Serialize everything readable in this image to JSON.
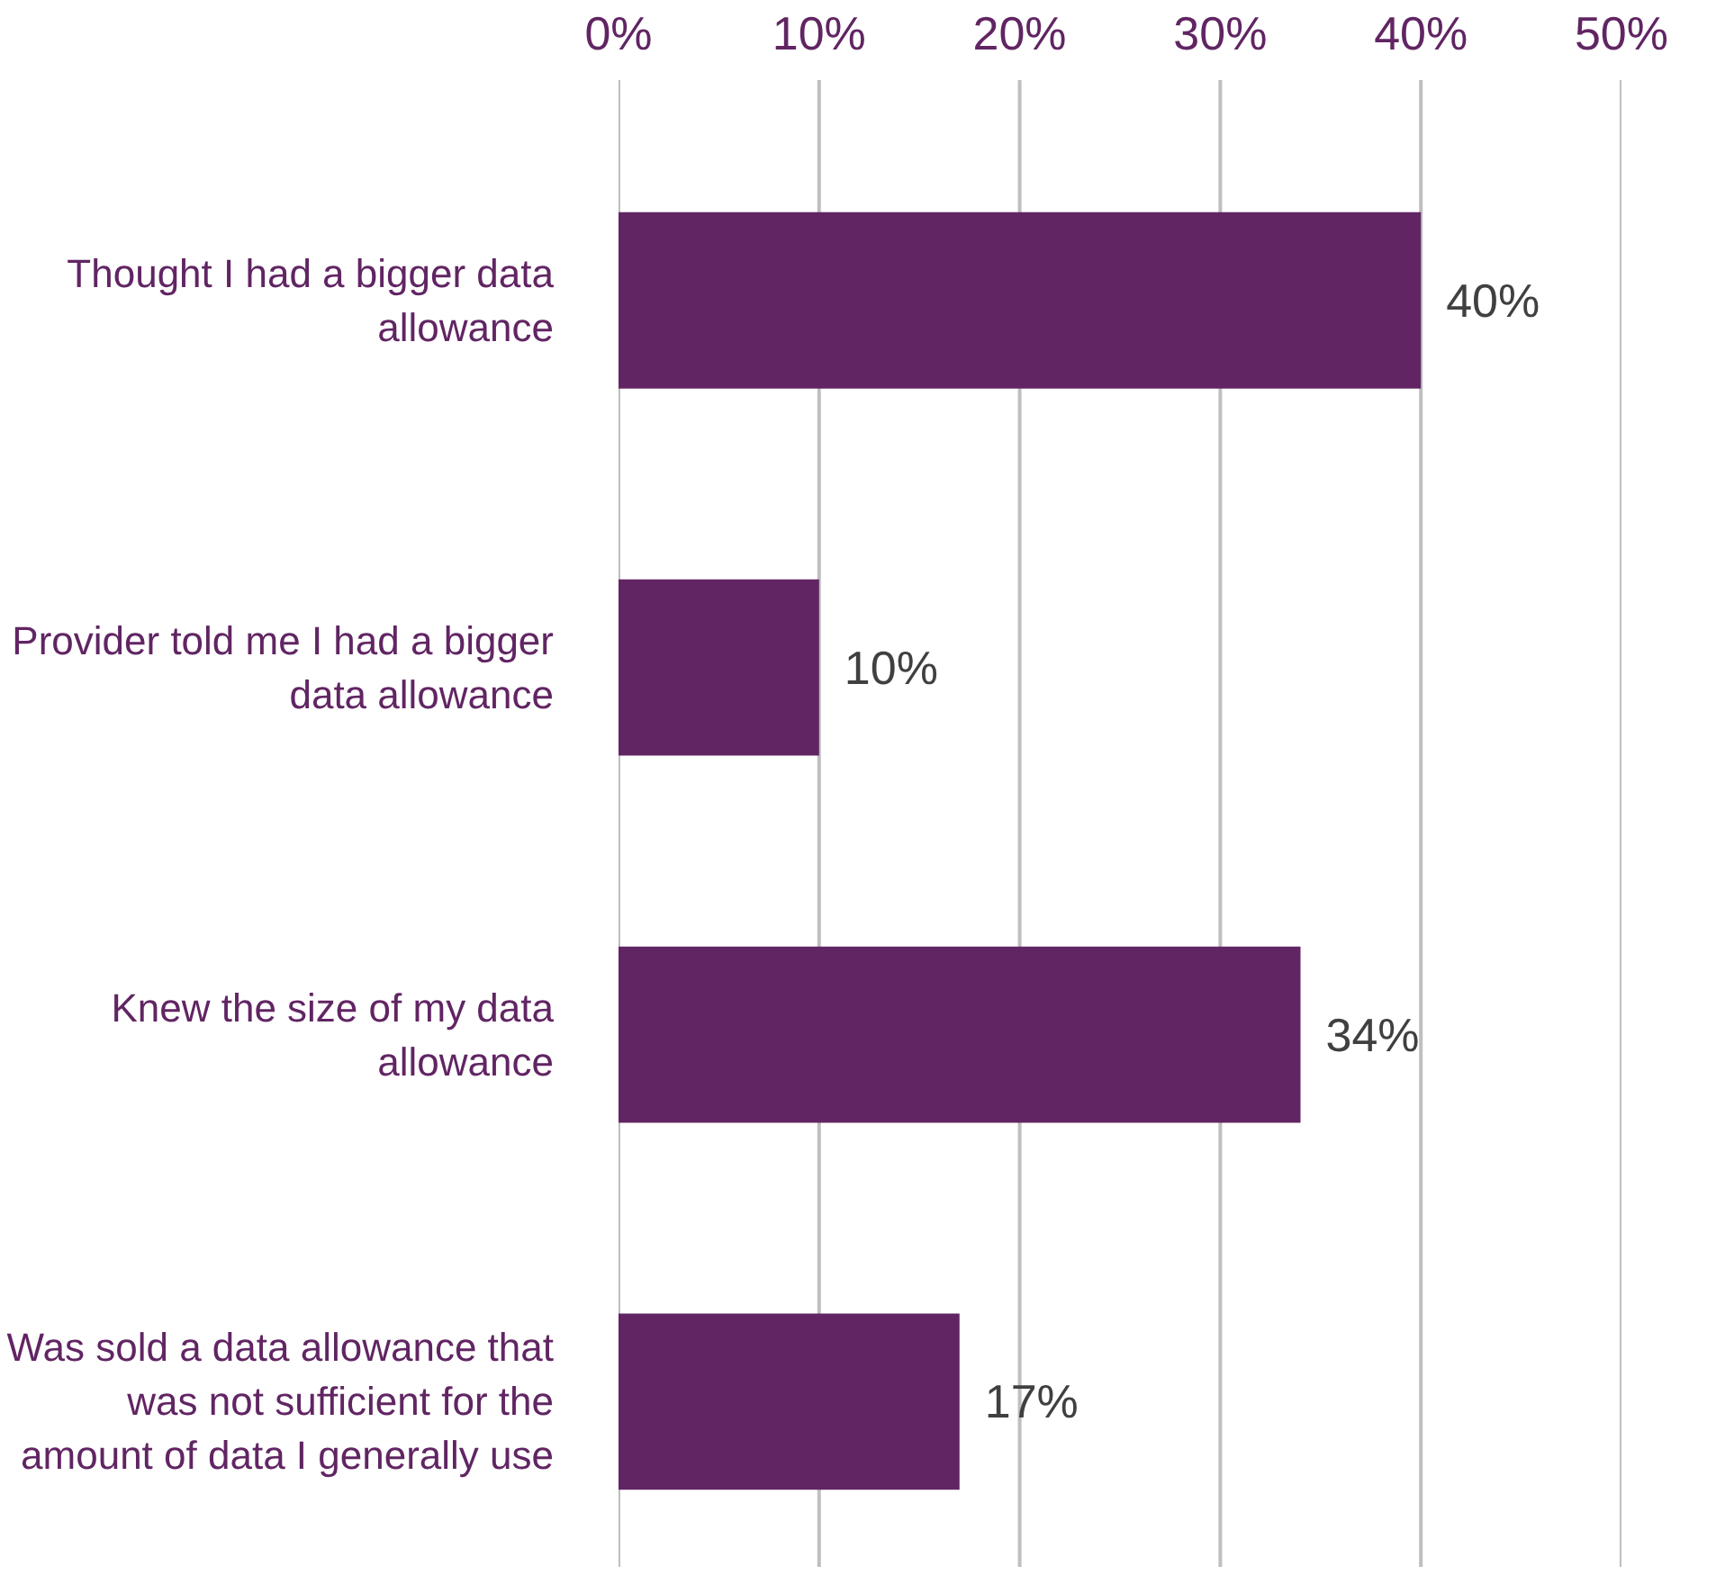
{
  "chart_data": {
    "type": "bar",
    "orientation": "horizontal",
    "categories": [
      "Thought I had a bigger data allowance",
      "Provider told me I had a bigger data allowance",
      "Knew the size of my data allowance",
      "Was sold a data allowance that was not sufficient for the amount of data I generally use"
    ],
    "values": [
      40,
      10,
      34,
      17
    ],
    "color": "#612563",
    "xlim": [
      0,
      50
    ],
    "xticks": [
      {
        "value": 0,
        "label": "0%"
      },
      {
        "value": 10,
        "label": "10%"
      },
      {
        "value": 20,
        "label": "20%"
      },
      {
        "value": 30,
        "label": "30%"
      },
      {
        "value": 40,
        "label": "40%"
      },
      {
        "value": 50,
        "label": "50%"
      }
    ],
    "value_labels": [
      "40%",
      "10%",
      "34%",
      "17%"
    ],
    "grid": "x"
  }
}
